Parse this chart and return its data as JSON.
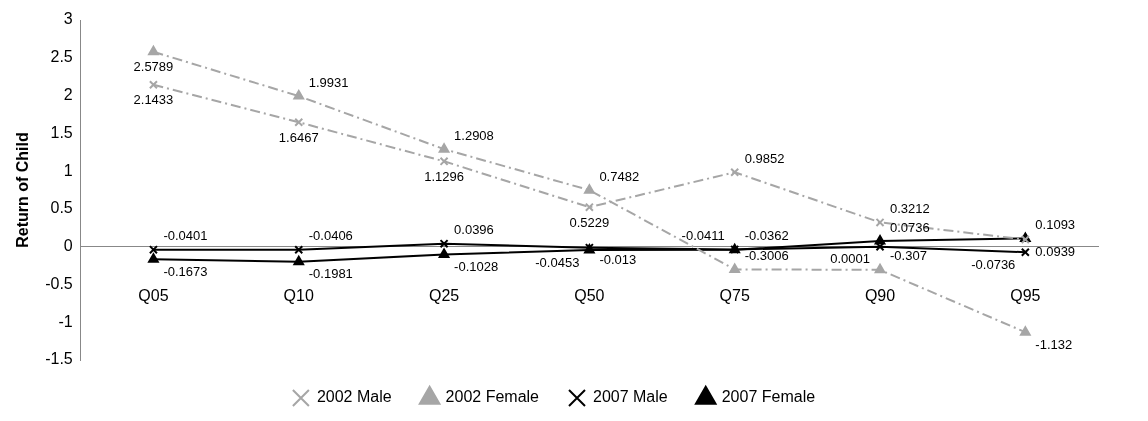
{
  "chart_data": {
    "type": "line",
    "ylabel": "Return of Child",
    "categories": [
      "Q05",
      "Q10",
      "Q25",
      "Q50",
      "Q75",
      "Q90",
      "Q95"
    ],
    "series": [
      {
        "name": "2002 Male",
        "color": "#a6a6a6",
        "marker": "cross",
        "line_style": "dashed",
        "values": [
          2.1433,
          1.6467,
          1.1296,
          0.5229,
          0.9852,
          0.3212,
          0.0939
        ]
      },
      {
        "name": "2002 Female",
        "color": "#a6a6a6",
        "marker": "triangle",
        "line_style": "dashed",
        "values": [
          2.5789,
          1.9931,
          1.2908,
          0.7482,
          -0.3006,
          -0.307,
          -1.132
        ]
      },
      {
        "name": "2007 Male",
        "color": "#000000",
        "marker": "cross",
        "line_style": "solid",
        "values": [
          -0.0401,
          -0.0406,
          0.0396,
          -0.013,
          -0.0362,
          0.0001,
          -0.0736
        ]
      },
      {
        "name": "2007 Female",
        "color": "#000000",
        "marker": "triangle",
        "line_style": "solid",
        "values": [
          -0.1673,
          -0.1981,
          -0.1028,
          -0.0453,
          -0.0411,
          0.0736,
          0.1093
        ]
      }
    ],
    "ylim": [
      -1.5,
      3
    ],
    "yticks": [
      -1.5,
      -1,
      -0.5,
      0,
      0.5,
      1,
      1.5,
      2,
      2.5,
      3
    ],
    "grid": false,
    "legend": "bottom",
    "data_labels": true
  }
}
